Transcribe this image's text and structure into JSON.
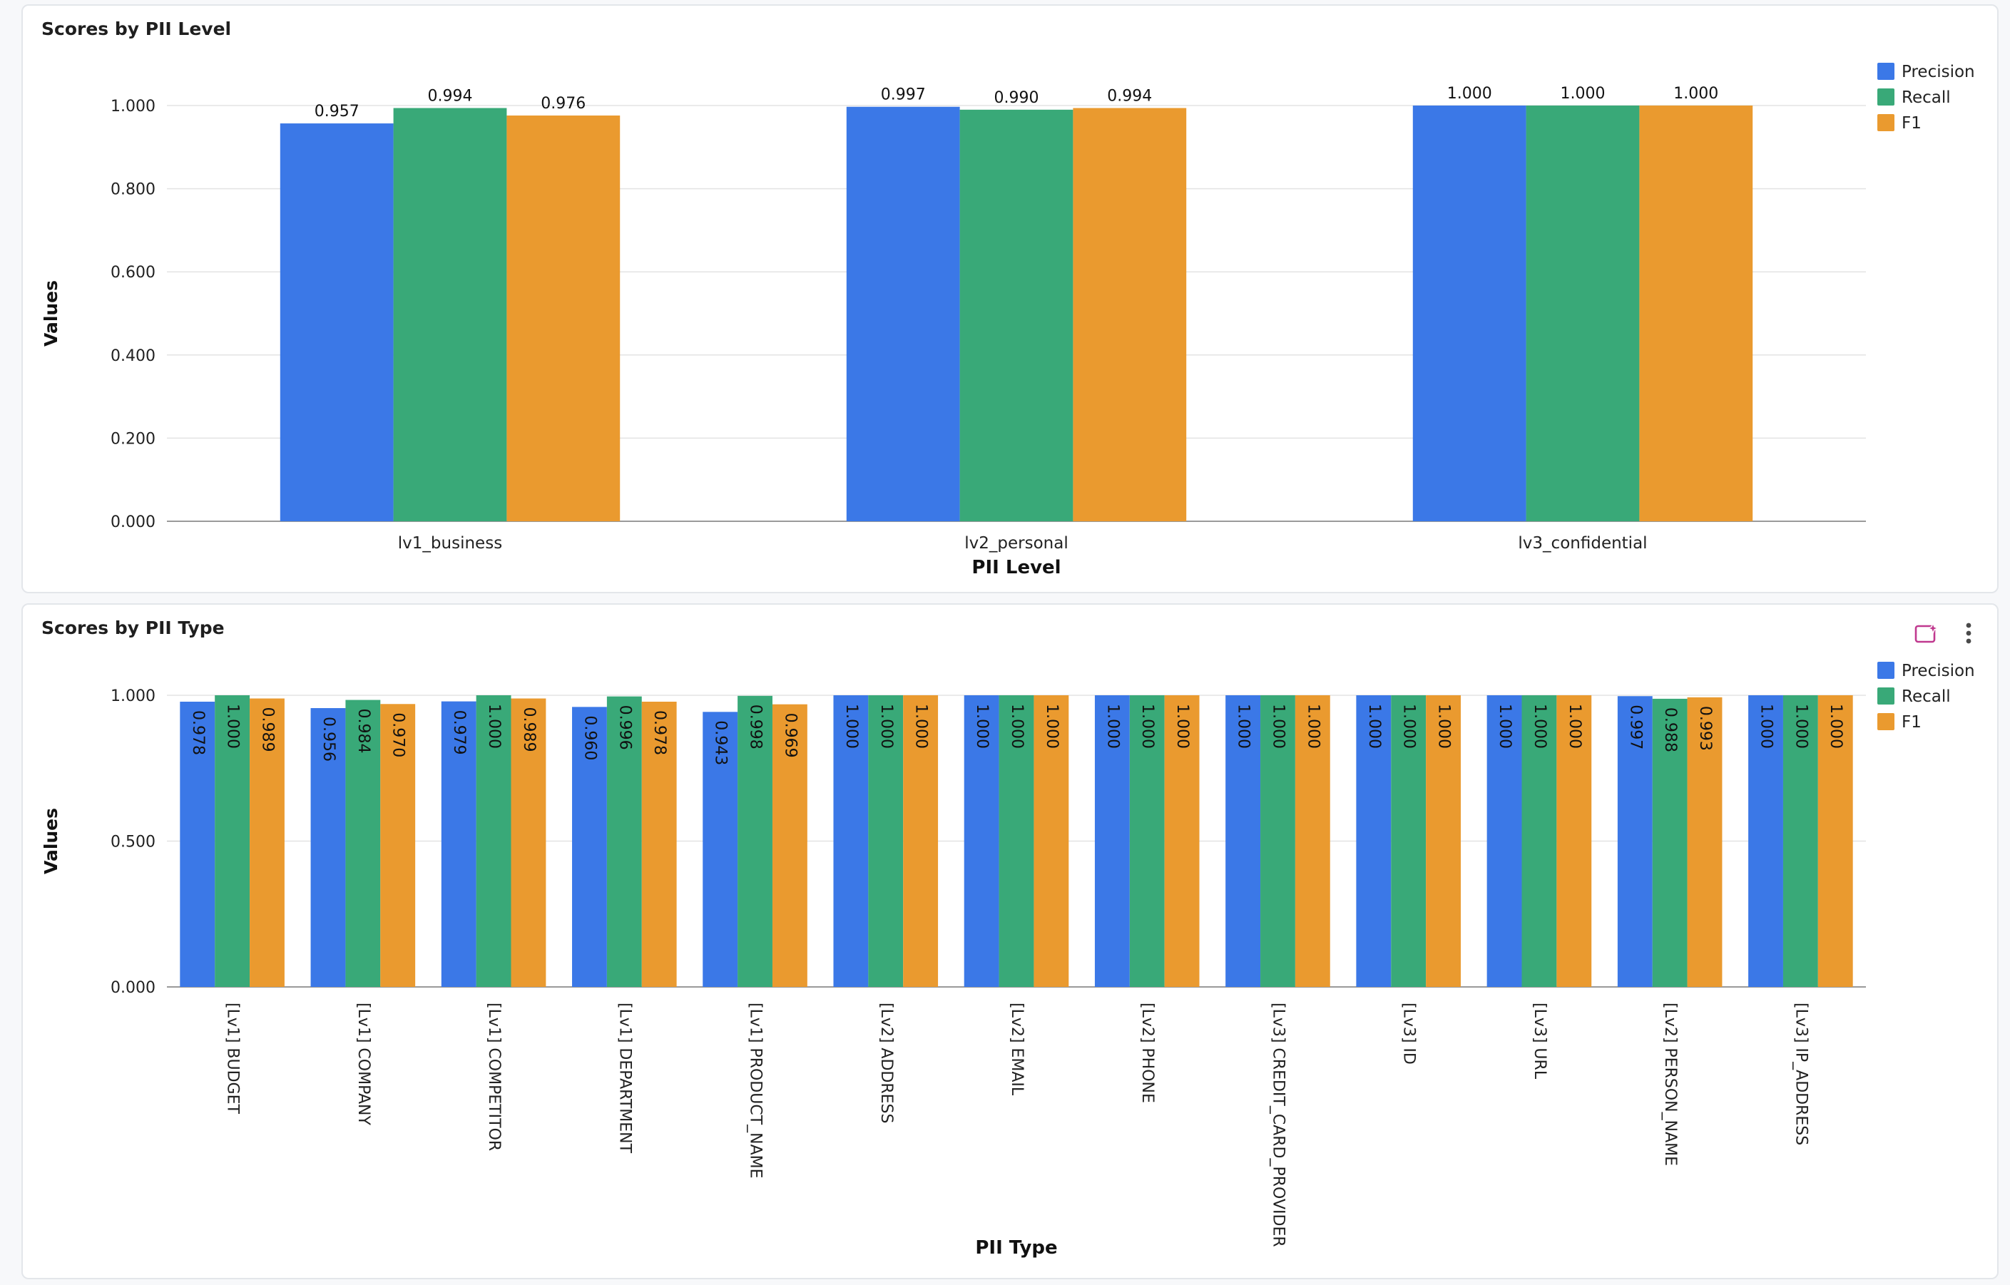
{
  "colors": {
    "precision": "#3b78e7",
    "recall": "#39a978",
    "f1": "#ea9a2f",
    "grid": "#e3e3e3",
    "axis": "#9a9a9a",
    "ai_icon": "#c0398f",
    "menu_icon": "#4a4a4a"
  },
  "toolbar": {
    "icons": [
      "sparkle-chart-icon",
      "more-vert-icon"
    ]
  },
  "chart_data": [
    {
      "type": "bar",
      "title": "Scores by PII Level",
      "xlabel": "PII Level",
      "ylabel": "Values",
      "categories": [
        "lv1_business",
        "lv2_personal",
        "lv3_confidential"
      ],
      "series": [
        {
          "name": "Precision",
          "color": "#3b78e7",
          "values": [
            0.957,
            0.997,
            1.0
          ]
        },
        {
          "name": "Recall",
          "color": "#39a978",
          "values": [
            0.994,
            0.99,
            1.0
          ]
        },
        {
          "name": "F1",
          "color": "#ea9a2f",
          "values": [
            0.976,
            0.994,
            1.0
          ]
        }
      ],
      "ylim": [
        0,
        1.0
      ],
      "yticks": [
        "0.000",
        "0.200",
        "0.400",
        "0.600",
        "0.800",
        "1.000"
      ],
      "data_labels": {
        "Precision": [
          "0.957",
          "0.997",
          "1.000"
        ],
        "Recall": [
          "0.994",
          "0.990",
          "1.000"
        ],
        "F1": [
          "0.976",
          "0.994",
          "1.000"
        ]
      },
      "grid": true,
      "legend": "top-right"
    },
    {
      "type": "bar",
      "title": "Scores by PII Type",
      "xlabel": "PII Type",
      "ylabel": "Values",
      "categories": [
        "[Lv1] BUDGET",
        "[Lv1] COMPANY",
        "[Lv1] COMPETITOR",
        "[Lv1] DEPARTMENT",
        "[Lv1] PRODUCT_NAME",
        "[Lv2] ADDRESS",
        "[Lv2] EMAIL",
        "[Lv2] PHONE",
        "[Lv3] CREDIT_CARD_PROVIDER",
        "[Lv3] ID",
        "[Lv3] URL",
        "[Lv2] PERSON_NAME",
        "[Lv3] IP_ADDRESS"
      ],
      "series": [
        {
          "name": "Precision",
          "color": "#3b78e7",
          "values": [
            0.978,
            0.956,
            0.979,
            0.96,
            0.943,
            1.0,
            1.0,
            1.0,
            1.0,
            1.0,
            1.0,
            0.997,
            1.0
          ]
        },
        {
          "name": "Recall",
          "color": "#39a978",
          "values": [
            1.0,
            0.984,
            1.0,
            0.996,
            0.998,
            1.0,
            1.0,
            1.0,
            1.0,
            1.0,
            1.0,
            0.988,
            1.0
          ]
        },
        {
          "name": "F1",
          "color": "#ea9a2f",
          "values": [
            0.989,
            0.97,
            0.989,
            0.978,
            0.969,
            1.0,
            1.0,
            1.0,
            1.0,
            1.0,
            1.0,
            0.993,
            1.0
          ]
        }
      ],
      "ylim": [
        0,
        1.0
      ],
      "yticks": [
        "0.000",
        "0.500",
        "1.000"
      ],
      "data_labels": {
        "Precision": [
          "0.978",
          "0.956",
          "0.979",
          "0.960",
          "0.943",
          "1.000",
          "1.000",
          "1.000",
          "1.000",
          "1.000",
          "1.000",
          "0.997",
          "1.000"
        ],
        "Recall": [
          "1.000",
          "0.984",
          "1.000",
          "0.996",
          "0.998",
          "1.000",
          "1.000",
          "1.000",
          "1.000",
          "1.000",
          "1.000",
          "0.988",
          "1.000"
        ],
        "F1": [
          "0.989",
          "0.970",
          "0.989",
          "0.978",
          "0.969",
          "1.000",
          "1.000",
          "1.000",
          "1.000",
          "1.000",
          "1.000",
          "0.993",
          "1.000"
        ]
      },
      "grid": true,
      "legend": "top-right"
    }
  ]
}
